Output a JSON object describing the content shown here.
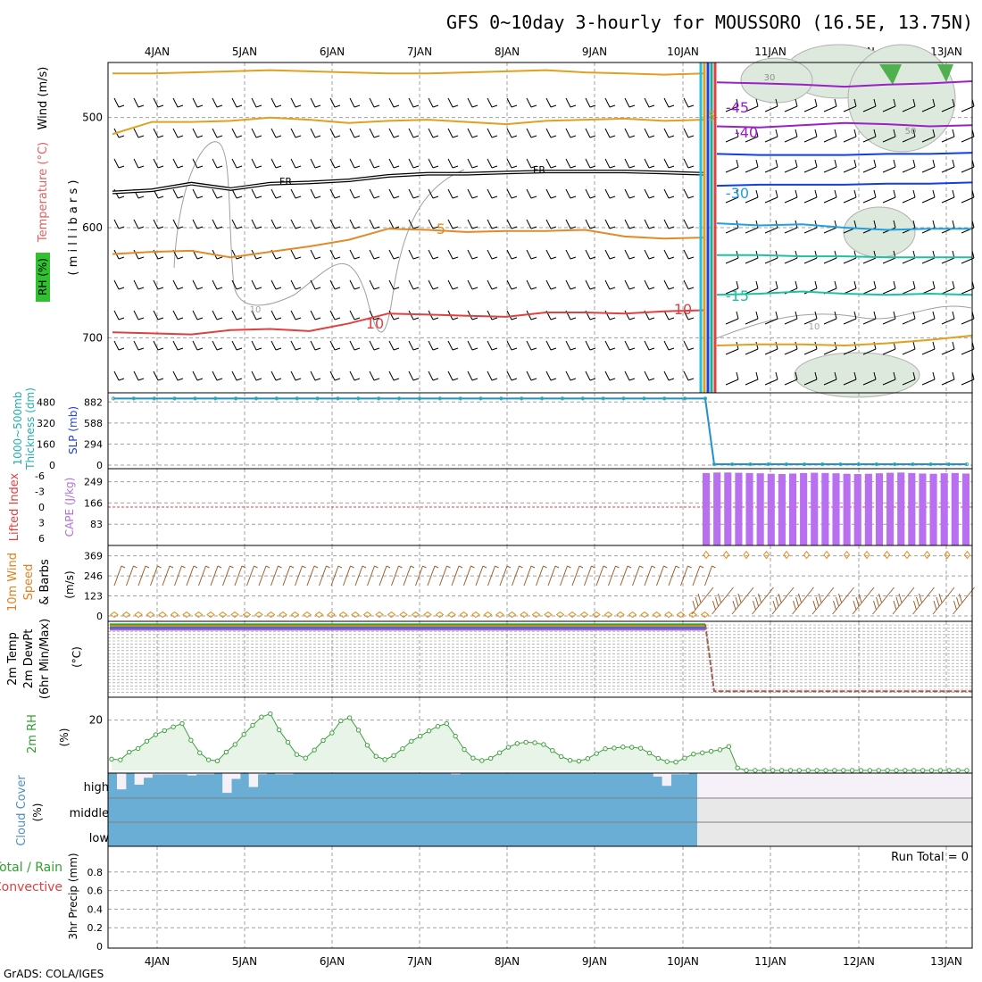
{
  "title": "GFS 0~10day 3-hourly for MOUSSORO (16.5E, 13.75N)",
  "credit": "GrADS: COLA/IGES",
  "colors": {
    "panel_border": "#000000",
    "grid": "#a0a0a0",
    "temp_warm": "#e08a2a",
    "temp_red": "#e04040",
    "temp_yellow": "#e0a020",
    "temp_purple": "#9a20c8",
    "temp_blue": "#1040e0",
    "temp_skyblue": "#20a0e0",
    "temp_teal": "#20c0a0",
    "slp_thickness": "#2090d0",
    "cape": "#b870f0",
    "wind_speed": "#e09020",
    "wind_barb": "#a06030",
    "rh_fill": "#e8f4e8",
    "rh_line": "#40a040",
    "cloud_fill": "#6aaed6",
    "cloud_missing": "#e8e8e8",
    "cloud_high_missing": "#f6f0f8"
  },
  "chart_data": {
    "type": "meteogram",
    "date_labels": [
      "4JAN",
      "5JAN",
      "6JAN",
      "7JAN",
      "8JAN",
      "9JAN",
      "10JAN",
      "11JAN",
      "12JAN",
      "13JAN"
    ],
    "panels": [
      {
        "id": "upper_air",
        "ylabels": [
          "RH (%)",
          "Temperature (°C)",
          "Wind (m/s)",
          "( m i l l i b a r s )"
        ],
        "yticks": [
          500,
          600,
          700
        ],
        "ylim": [
          450,
          750
        ],
        "contour_labels": [
          "FR",
          "FR",
          "5",
          "10",
          "10",
          "10",
          "-45",
          "-40",
          "-30",
          "-15",
          "5",
          "10",
          "50",
          "30"
        ],
        "isotherms_before": [
          {
            "name": "upper_yellow",
            "values": [
              460,
              460,
              459,
              458,
              457,
              458,
              459,
              460,
              460,
              459,
              458,
              457,
              459,
              460,
              461,
              460
            ]
          },
          {
            "name": "mid_yellow",
            "values": [
              515,
              504,
              504,
              503,
              500,
              502,
              505,
              503,
              502,
              504,
              506,
              503,
              502,
              501,
              503,
              502
            ]
          },
          {
            "name": "freezing",
            "values": [
              568,
              566,
              560,
              565,
              560,
              559,
              557,
              553,
              551,
              551,
              550,
              549,
              549,
              549,
              550,
              551
            ]
          },
          {
            "name": "t5",
            "values": [
              624,
              622,
              621,
              627,
              622,
              617,
              611,
              601,
              602,
              604,
              603,
              603,
              602,
              608,
              610,
              609
            ]
          },
          {
            "name": "t10",
            "values": [
              695,
              696,
              697,
              693,
              692,
              694,
              687,
              678,
              679,
              680,
              681,
              677,
              677,
              678,
              676,
              675
            ]
          }
        ],
        "isotherms_after": [
          {
            "name": "-45",
            "values": [
              468,
              469,
              470,
              472,
              470,
              469,
              467
            ]
          },
          {
            "name": "-40",
            "values": [
              508,
              509,
              507,
              505,
              506,
              508,
              507
            ]
          },
          {
            "name": "-35",
            "values": [
              533,
              534,
              534,
              534,
              533,
              533,
              532
            ]
          },
          {
            "name": "-30",
            "values": [
              562,
              561,
              561,
              561,
              560,
              560,
              559
            ]
          },
          {
            "name": "-25",
            "values": [
              596,
              598,
              597,
              600,
              602,
              601,
              601
            ]
          },
          {
            "name": "-20",
            "values": [
              625,
              625,
              626,
              626,
              627,
              627,
              627
            ]
          },
          {
            "name": "-15",
            "values": [
              661,
              660,
              658,
              660,
              661,
              660,
              661
            ]
          },
          {
            "name": "10",
            "values": [
              707,
              706,
              706,
              707,
              705,
              702,
              698
            ]
          }
        ]
      },
      {
        "id": "slp_thickness",
        "ylabels_left": [
          "1000~500mb",
          "Thickness (dm)"
        ],
        "ylabels_right": [
          "SLP (mb)"
        ],
        "yticks_left": [
          480,
          320,
          160,
          0
        ],
        "yticks_right": [
          882,
          588,
          294,
          0
        ],
        "ylim": [
          0,
          960
        ],
        "slp_before": 930,
        "slp_after": 12
      },
      {
        "id": "stability",
        "ylabels_left": [
          "Lifted Index"
        ],
        "ylabels_right": [
          "CAPE (J/kg)"
        ],
        "yticks_left": [
          -6,
          -3,
          0,
          3,
          6
        ],
        "yticks_right": [
          249,
          166,
          83
        ],
        "cape_ylim": [
          0,
          300
        ],
        "cape_values": [
          283,
          285,
          285,
          284,
          283,
          282,
          280,
          279,
          281,
          283,
          284,
          283,
          282,
          280,
          279,
          280,
          282,
          284,
          285,
          283,
          281,
          280,
          282,
          283,
          281
        ]
      },
      {
        "id": "wind10m",
        "ylabels_left": [
          "10m Wind"
        ],
        "ylabels_right": [
          "Speed",
          "(m/s)",
          "& Barbs"
        ],
        "yticks": [
          369,
          246,
          123,
          0
        ],
        "ylim": [
          0,
          400
        ],
        "speed_before": 8,
        "speed_after": 375
      },
      {
        "id": "temp2m",
        "ylabels": [
          "2m Temp",
          "2m DewPt",
          "(6hr Min/Max)",
          "(°C)"
        ],
        "temp_before": 96,
        "temp_after": 8
      },
      {
        "id": "rh2m",
        "ylabels": [
          "2m RH",
          "(%)"
        ],
        "yticks": [
          20
        ],
        "ylim": [
          0,
          28
        ],
        "values": [
          4.5,
          4.2,
          7.3,
          8.7,
          11.6,
          14.2,
          15.8,
          17.3,
          18.6,
          12.0,
          7.0,
          4.2,
          3.8,
          7.3,
          10.3,
          14.3,
          17.9,
          21.2,
          22.5,
          16.1,
          11.2,
          6.3,
          4.9,
          8.1,
          11.9,
          14.9,
          19.7,
          20.9,
          16.0,
          10.0,
          5.6,
          4.3,
          5.9,
          8.6,
          11.6,
          13.6,
          15.7,
          17.5,
          18.6,
          13.6,
          8.3,
          4.9,
          3.9,
          4.8,
          7.0,
          9.2,
          10.7,
          11.2,
          11.0,
          10.3,
          7.9,
          5.5,
          4.0,
          3.7,
          4.7,
          6.7,
          8.6,
          8.9,
          9.3,
          9.2,
          8.8,
          6.9,
          4.8,
          3.5,
          3.3,
          4.9,
          6.5,
          7.0,
          7.6,
          8.2,
          9.5,
          1.0,
          0,
          0,
          0,
          0,
          0,
          0,
          0,
          0,
          0,
          0,
          0,
          0,
          0,
          0,
          0,
          0,
          0,
          0,
          0,
          0,
          0,
          0,
          0,
          0,
          0,
          0
        ]
      },
      {
        "id": "cloud",
        "ylabels": [
          "Cloud Cover",
          "(%)"
        ],
        "layers": [
          "high",
          "middle",
          "low"
        ],
        "high_gaps": [
          0.7,
          0,
          0.5,
          0.2,
          0.05,
          0.05,
          0.05,
          0.05,
          0.1,
          0.05,
          0.05,
          0,
          0.85,
          0.25,
          0,
          0.6,
          0.05,
          0,
          0.05,
          0.05,
          0,
          0,
          0,
          0,
          0,
          0,
          0,
          0,
          0,
          0,
          0,
          0,
          0,
          0,
          0,
          0,
          0,
          0,
          0.05,
          0,
          0,
          0,
          0,
          0,
          0,
          0,
          0,
          0,
          0,
          0,
          0,
          0,
          0,
          0,
          0,
          0,
          0,
          0,
          0,
          0,
          0,
          0.15,
          0.55,
          0.05,
          0.05,
          0
        ]
      },
      {
        "id": "precip",
        "ylabels_left_green": [
          "Total / Rain"
        ],
        "ylabels_left_red": [
          "Convective"
        ],
        "ylabels_right": [
          "3hr Precip (mm)"
        ],
        "yticks": [
          "0",
          "0.2",
          "0.4",
          "0.6",
          "0.8"
        ],
        "ylim": [
          0,
          1
        ],
        "run_total_label": "Run Total = 0"
      }
    ]
  }
}
